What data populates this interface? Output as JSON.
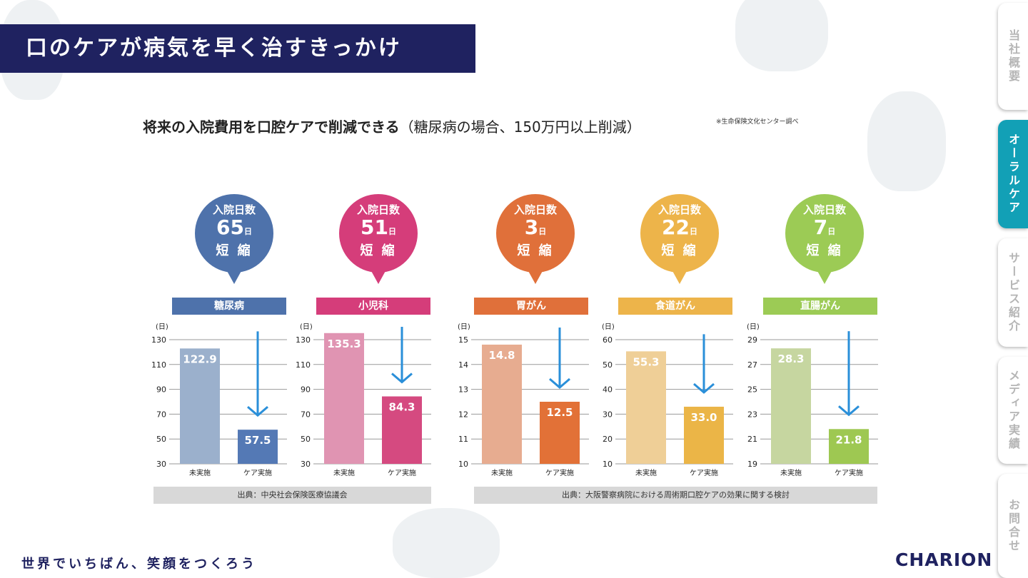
{
  "title": "口のケアが病気を早く治すきっかけ",
  "heading": {
    "main": "将来の入院費用を口腔ケアで削減できる",
    "sub": "（糖尿病の場合、150万円以上削減）",
    "note": "※生命保険文化センター調べ"
  },
  "side_tabs": [
    {
      "label": "当社概要",
      "active": false
    },
    {
      "label": "オーラルケア",
      "active": true
    },
    {
      "label": "サービス紹介",
      "active": false
    },
    {
      "label": "メディア実績",
      "active": false
    },
    {
      "label": "お問合せ",
      "active": false
    }
  ],
  "bubble_common": {
    "line1": "入院日数",
    "unit": "日",
    "line3": "短 縮"
  },
  "colors": {
    "navy": "#1f2260",
    "teal": "#12a0b6",
    "arrow": "#2a8fd9"
  },
  "chart_data": [
    {
      "type": "bar",
      "title": "糖尿病",
      "reduction": "65",
      "ylabel": "(日)",
      "yticks": [
        30,
        50,
        70,
        90,
        110,
        130
      ],
      "ylim": [
        30,
        130
      ],
      "categories": [
        "未実施",
        "ケア実施"
      ],
      "values": [
        122.9,
        57.5
      ],
      "labels": [
        "122.9",
        "57.5"
      ],
      "color_light": "#9bb0cc",
      "color_dark": "#5479b5",
      "color_bubble": "#4e72ab"
    },
    {
      "type": "bar",
      "title": "小児科",
      "reduction": "51",
      "ylabel": "(日)",
      "yticks": [
        30,
        50,
        70,
        90,
        110,
        130
      ],
      "ylim": [
        30,
        130
      ],
      "categories": [
        "未実施",
        "ケア実施"
      ],
      "values": [
        135.3,
        84.3
      ],
      "labels": [
        "135.3",
        "84.3"
      ],
      "color_light": "#e094b2",
      "color_dark": "#d54a80",
      "color_bubble": "#d53d7a"
    },
    {
      "type": "bar",
      "title": "胃がん",
      "reduction": "3",
      "ylabel": "(日)",
      "yticks": [
        10,
        11,
        12,
        13,
        14,
        15
      ],
      "ylim": [
        10,
        15
      ],
      "categories": [
        "未実施",
        "ケア実施"
      ],
      "values": [
        14.8,
        12.5
      ],
      "labels": [
        "14.8",
        "12.5"
      ],
      "color_light": "#e7ac90",
      "color_dark": "#e27137",
      "color_bubble": "#e0703a"
    },
    {
      "type": "bar",
      "title": "食道がん",
      "reduction": "22",
      "ylabel": "(日)",
      "yticks": [
        10,
        20,
        30,
        40,
        50,
        60
      ],
      "ylim": [
        10,
        60
      ],
      "categories": [
        "未実施",
        "ケア実施"
      ],
      "values": [
        55.3,
        33.0
      ],
      "labels": [
        "55.3",
        "33.0"
      ],
      "color_light": "#efcf97",
      "color_dark": "#ebb547",
      "color_bubble": "#edb44a"
    },
    {
      "type": "bar",
      "title": "直腸がん",
      "reduction": "7",
      "ylabel": "(日)",
      "yticks": [
        19,
        21,
        23,
        25,
        27,
        29
      ],
      "ylim": [
        19,
        29
      ],
      "categories": [
        "未実施",
        "ケア実施"
      ],
      "values": [
        28.3,
        21.8
      ],
      "labels": [
        "28.3",
        "21.8"
      ],
      "color_light": "#c6d6a0",
      "color_dark": "#9ec852",
      "color_bubble": "#9ccb55"
    }
  ],
  "sources": [
    "出典：中央社会保険医療協議会",
    "出典：大阪警察病院における周術期口腔ケアの効果に関する検討"
  ],
  "footer": {
    "tagline": "世界でいちばん、笑顔をつくろう",
    "logo": "CHARION"
  }
}
